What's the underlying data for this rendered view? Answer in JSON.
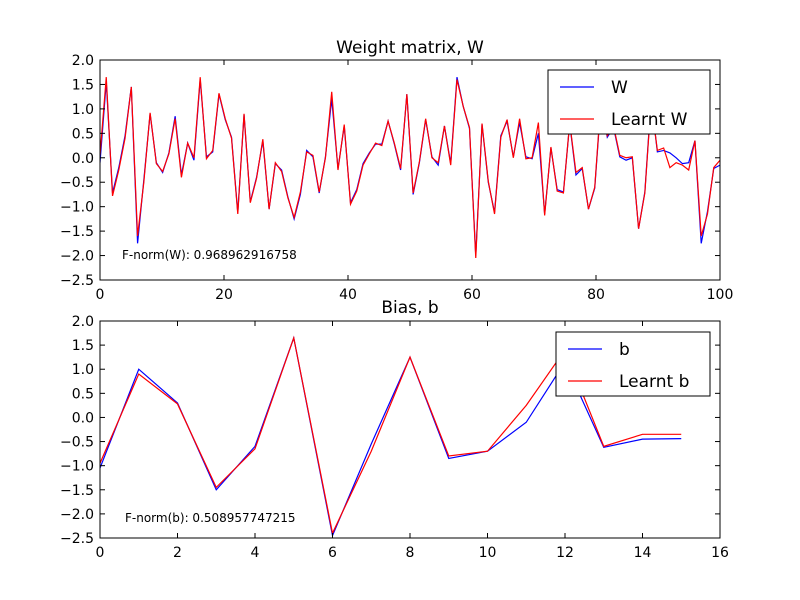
{
  "chart_data": [
    {
      "type": "line",
      "title": "Weight matrix, W",
      "xlabel": "",
      "ylabel": "",
      "xlim": [
        0,
        100
      ],
      "ylim": [
        -2.5,
        2.0
      ],
      "xticks": [
        "0",
        "20",
        "40",
        "60",
        "80",
        "100"
      ],
      "yticks": [
        "2.0",
        "1.5",
        "1.0",
        "0.5",
        "0.0",
        "−0.5",
        "−1.0",
        "−1.5",
        "−2.0",
        "−2.5"
      ],
      "legend_position": "top-right",
      "annotation": "F-norm(W): 0.968962916758",
      "series": [
        {
          "name": "W",
          "color": "#0000ff",
          "values": [
            -0.1,
            1.55,
            -0.72,
            -0.2,
            0.45,
            1.45,
            -1.75,
            -0.45,
            0.9,
            -0.1,
            -0.3,
            0.1,
            0.85,
            -0.35,
            0.3,
            -0.05,
            1.6,
            0.02,
            0.12,
            1.3,
            0.78,
            0.42,
            -1.12,
            0.88,
            -0.9,
            -0.4,
            0.35,
            -1.05,
            -0.12,
            -0.25,
            -0.8,
            -1.25,
            -0.75,
            0.15,
            0.02,
            -0.72,
            0.02,
            1.2,
            -0.22,
            0.65,
            -0.92,
            -0.65,
            -0.12,
            0.1,
            0.28,
            0.28,
            0.75,
            0.28,
            -0.25,
            1.3,
            -0.75,
            -0.1,
            0.78,
            0.02,
            -0.15,
            0.65,
            -0.12,
            1.65,
            1.05,
            0.6,
            -2.0,
            0.68,
            -0.5,
            -1.12,
            0.45,
            0.75,
            0.02,
            0.72,
            0.02,
            -0.02,
            0.5,
            -1.15,
            0.2,
            -0.65,
            -0.7,
            0.7,
            -0.35,
            -0.22,
            -1.05,
            -0.62,
            1.15,
            0.42,
            0.62,
            0.02,
            -0.05,
            0.0,
            -1.45,
            -0.7,
            1.2,
            0.12,
            0.15,
            0.1,
            0.0,
            -0.12,
            -0.1,
            0.35,
            -1.75,
            -1.1,
            -0.22,
            -0.15
          ]
        },
        {
          "name": "Learnt W",
          "color": "#ff0000",
          "values": [
            0.05,
            1.65,
            -0.78,
            -0.25,
            0.4,
            1.45,
            -1.6,
            -0.5,
            0.92,
            -0.12,
            -0.28,
            0.08,
            0.8,
            -0.4,
            0.3,
            0.0,
            1.65,
            -0.02,
            0.15,
            1.32,
            0.8,
            0.4,
            -1.15,
            0.9,
            -0.92,
            -0.42,
            0.38,
            -1.05,
            -0.1,
            -0.28,
            -0.82,
            -1.22,
            -0.7,
            0.12,
            0.05,
            -0.7,
            0.0,
            1.35,
            -0.25,
            0.68,
            -0.95,
            -0.68,
            -0.15,
            0.08,
            0.3,
            0.25,
            0.75,
            0.3,
            -0.22,
            1.3,
            -0.72,
            -0.08,
            0.8,
            0.0,
            -0.1,
            0.65,
            -0.15,
            1.6,
            1.05,
            0.62,
            -2.05,
            0.7,
            -0.48,
            -1.15,
            0.42,
            0.78,
            0.0,
            0.8,
            -0.02,
            0.0,
            0.72,
            -1.18,
            0.22,
            -0.68,
            -0.72,
            0.72,
            -0.3,
            -0.2,
            -1.05,
            -0.6,
            1.2,
            0.45,
            0.65,
            0.05,
            0.0,
            0.02,
            -1.45,
            -0.72,
            1.15,
            0.15,
            0.2,
            -0.2,
            -0.1,
            -0.15,
            -0.25,
            0.35,
            -1.6,
            -1.15,
            -0.2,
            -0.05
          ]
        }
      ]
    },
    {
      "type": "line",
      "title": "Bias, b",
      "xlabel": "",
      "ylabel": "",
      "xlim": [
        0,
        16
      ],
      "ylim": [
        -2.5,
        2.0
      ],
      "xticks": [
        "0",
        "2",
        "4",
        "6",
        "8",
        "10",
        "12",
        "14",
        "16"
      ],
      "yticks": [
        "2.0",
        "1.5",
        "1.0",
        "0.5",
        "0.0",
        "−0.5",
        "−1.0",
        "−1.5",
        "−2.0",
        "−2.5"
      ],
      "legend_position": "top-right",
      "annotation": "F-norm(b): 0.508957747215",
      "series": [
        {
          "name": "b",
          "color": "#0000ff",
          "values": [
            -1.05,
            1.0,
            0.3,
            -1.5,
            -0.6,
            1.65,
            -2.45,
            -0.55,
            1.25,
            -0.85,
            -0.7,
            -0.1,
            1.15,
            -0.62,
            -0.45,
            -0.44
          ]
        },
        {
          "name": "Learnt b",
          "color": "#ff0000",
          "values": [
            -0.95,
            0.9,
            0.28,
            -1.45,
            -0.65,
            1.65,
            -2.4,
            -0.7,
            1.25,
            -0.8,
            -0.7,
            0.25,
            1.4,
            -0.6,
            -0.35,
            -0.35
          ]
        }
      ]
    }
  ]
}
